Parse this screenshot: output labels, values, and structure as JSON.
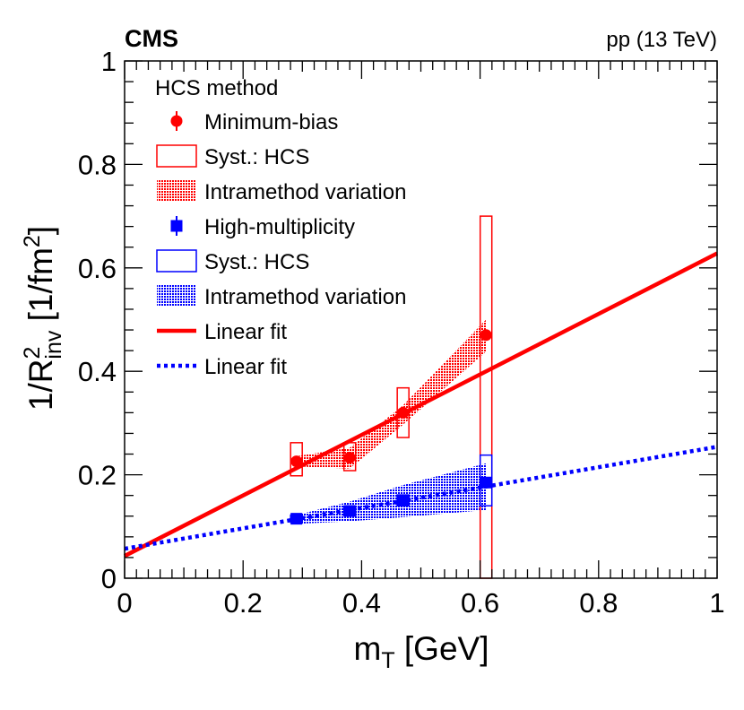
{
  "chart_data": {
    "type": "scatter",
    "experiment_label": "CMS",
    "energy_label": "pp (13 TeV)",
    "xlabel": {
      "main": "m",
      "sub": "T",
      "unit": " [GeV]"
    },
    "ylabel": {
      "prefix": "1/R",
      "sup": "2",
      "sub": "inv",
      "unit_open": " [1/fm",
      "unit_sup": "2",
      "unit_close": "]"
    },
    "xlim": [
      0,
      1
    ],
    "ylim": [
      0,
      1
    ],
    "xticks": [
      0,
      0.2,
      0.4,
      0.6,
      0.8,
      1
    ],
    "xtick_labels": [
      "0",
      "0.2",
      "0.4",
      "0.6",
      "0.8",
      "1"
    ],
    "yticks": [
      0,
      0.2,
      0.4,
      0.6,
      0.8,
      1
    ],
    "ytick_labels": [
      "0",
      "0.2",
      "0.4",
      "0.6",
      "0.8",
      "1"
    ],
    "legend_title": "HCS method",
    "legend": [
      {
        "key": "mb_points",
        "label": "Minimum-bias",
        "marker": "circle",
        "color": "#ff0000"
      },
      {
        "key": "mb_syst",
        "label": "Syst.: HCS",
        "marker": "open-box",
        "color": "#ff0000"
      },
      {
        "key": "mb_band",
        "label": "Intramethod variation",
        "marker": "hatched-band",
        "color": "#ff0000"
      },
      {
        "key": "hm_points",
        "label": "High-multiplicity",
        "marker": "square",
        "color": "#0000ff"
      },
      {
        "key": "hm_syst",
        "label": "Syst.: HCS",
        "marker": "open-box",
        "color": "#0000ff"
      },
      {
        "key": "hm_band",
        "label": "Intramethod variation",
        "marker": "hatched-band",
        "color": "#0000ff"
      },
      {
        "key": "mb_fit",
        "label": "Linear fit",
        "marker": "solid-line",
        "color": "#ff0000"
      },
      {
        "key": "hm_fit",
        "label": "Linear fit",
        "marker": "dotted-line",
        "color": "#0000ff"
      }
    ],
    "series": [
      {
        "name": "Minimum-bias",
        "color": "#ff0000",
        "marker": "circle",
        "x": [
          0.29,
          0.38,
          0.47,
          0.61
        ],
        "y": [
          0.226,
          0.233,
          0.32,
          0.47
        ],
        "syst_low": [
          0.198,
          0.208,
          0.272,
          0.0
        ],
        "syst_high": [
          0.262,
          0.262,
          0.368,
          0.7
        ],
        "band_low": [
          0.216,
          0.212,
          0.297,
          0.438
        ],
        "band_high": [
          0.236,
          0.252,
          0.334,
          0.5
        ],
        "fit": {
          "intercept": 0.043,
          "slope": 0.585
        }
      },
      {
        "name": "High-multiplicity",
        "color": "#0000ff",
        "marker": "square",
        "x": [
          0.29,
          0.38,
          0.47,
          0.61
        ],
        "y": [
          0.115,
          0.13,
          0.15,
          0.185
        ],
        "syst_low": [
          0.108,
          0.121,
          0.14,
          0.14
        ],
        "syst_high": [
          0.122,
          0.139,
          0.161,
          0.238
        ],
        "band_low": [
          0.105,
          0.11,
          0.118,
          0.132
        ],
        "band_high": [
          0.122,
          0.148,
          0.18,
          0.222
        ],
        "fit": {
          "intercept": 0.057,
          "slope": 0.197
        }
      }
    ]
  }
}
